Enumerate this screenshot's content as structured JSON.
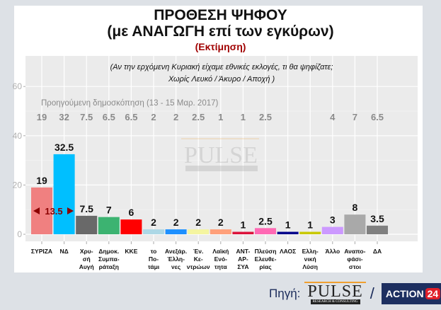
{
  "header": {
    "title": "ΠΡΟΘΕΣΗ ΨΗΦΟΥ",
    "subtitle": "(με ΑΝΑΓΩΓΗ επί των εγκύρων)",
    "note": "(Εκτίμηση)"
  },
  "chart_data": {
    "type": "bar",
    "question_line1": "(Αν την ερχόμενη Κυριακή είχαμε εθνικές εκλογές, τι θα ψηφίζατε;",
    "question_line2": "Χωρίς Λευκό / Άκυρο / Αποχή )",
    "categories": [
      [
        "ΣΥΡΙΖΑ"
      ],
      [
        "ΝΔ"
      ],
      [
        "Χρυ-",
        "σή",
        "Αυγή"
      ],
      [
        "Δημοκ.",
        "Συμπα-",
        "ράταξη"
      ],
      [
        "ΚΚΕ"
      ],
      [
        "το",
        "Πο-",
        "τάμι"
      ],
      [
        "Ανεξάρ.",
        "Έλλη-",
        "νες"
      ],
      [
        "Έν.",
        "Κε-",
        "ντρώων"
      ],
      [
        "Λαϊκή",
        "Ενό-",
        "τητα"
      ],
      [
        "ΑΝΤ-",
        "ΑΡ-",
        "ΣΥΑ"
      ],
      [
        "Πλεύση",
        "Ελευθε-",
        "ρίας"
      ],
      [
        "ΛΑΟΣ"
      ],
      [
        "Ελλη-",
        "νική",
        "Λύση"
      ],
      [
        "Άλλο"
      ],
      [
        "Αναπο-",
        "φάσι-",
        "στοι"
      ],
      [
        "ΔΑ"
      ]
    ],
    "values": [
      19,
      32.5,
      7.5,
      7,
      6,
      2,
      2,
      2,
      2,
      1,
      2.5,
      1,
      1,
      3,
      8,
      3.5
    ],
    "value_labels": [
      "19",
      "32.5",
      "7.5",
      "7",
      "6",
      "2",
      "2",
      "2",
      "2",
      "1",
      "2.5",
      "1",
      "1",
      "3",
      "8",
      "3.5"
    ],
    "colors": [
      "#f08080",
      "#00bfff",
      "#696969",
      "#3cb371",
      "#ff0000",
      "#add8e6",
      "#1e90ff",
      "#f5f5a0",
      "#ffa07a",
      "#dc143c",
      "#ff69b4",
      "#00008b",
      "#c8c800",
      "#cc99ff",
      "#a9a9a9",
      "#808080"
    ],
    "previous_poll_label": "Προηγούμενη δημοσκόπηση (13 - 15 Μαρ. 2017)",
    "previous_values": [
      "19",
      "32",
      "7.5",
      "6.5",
      "6.5",
      "2",
      "2",
      "2.5",
      "1",
      "1",
      "2.5",
      "",
      "",
      "4",
      "7",
      "6.5"
    ],
    "difference_label": "13.5",
    "yticks": [
      "0",
      "20",
      "40",
      "60"
    ],
    "ylim": [
      0,
      62
    ],
    "grid": true
  },
  "footer": {
    "source_label": "Πηγή:",
    "pulse_logo": "PULSE",
    "pulse_tagline": "RESEARCH & CONSULTING",
    "slash": "/",
    "action_text": "ACTION",
    "action_num": "24"
  }
}
